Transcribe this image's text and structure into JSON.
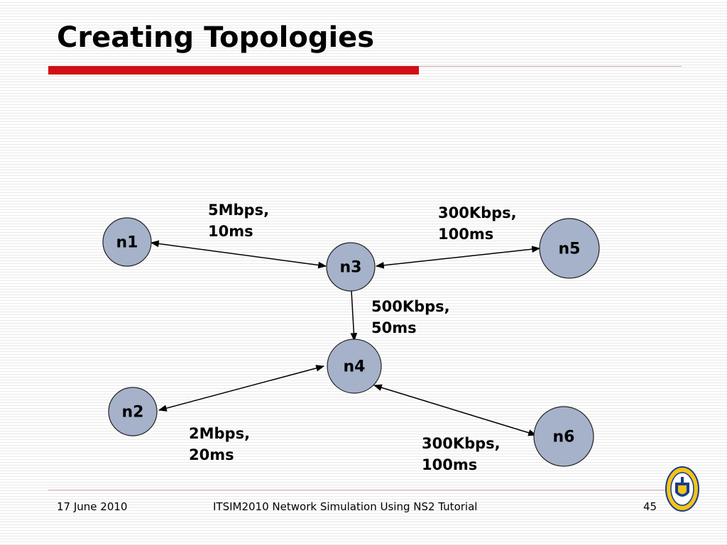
{
  "slide": {
    "title": "Creating Topologies",
    "accent_color": "#d10f16"
  },
  "diagram": {
    "nodes": [
      {
        "id": "n1",
        "label": "n1"
      },
      {
        "id": "n2",
        "label": "n2"
      },
      {
        "id": "n3",
        "label": "n3"
      },
      {
        "id": "n4",
        "label": "n4"
      },
      {
        "id": "n5",
        "label": "n5"
      },
      {
        "id": "n6",
        "label": "n6"
      }
    ],
    "node_color": "#a5b2c9",
    "links": [
      {
        "from": "n1",
        "to": "n3",
        "bandwidth": "5Mbps,",
        "delay": "10ms"
      },
      {
        "from": "n3",
        "to": "n5",
        "bandwidth": "300Kbps,",
        "delay": "100ms"
      },
      {
        "from": "n3",
        "to": "n4",
        "bandwidth": "500Kbps,",
        "delay": "50ms"
      },
      {
        "from": "n2",
        "to": "n4",
        "bandwidth": "2Mbps,",
        "delay": "20ms"
      },
      {
        "from": "n4",
        "to": "n6",
        "bandwidth": "300Kbps,",
        "delay": "100ms"
      }
    ]
  },
  "footer": {
    "date": "17 June 2010",
    "center": "ITSIM2010 Network Simulation Using NS2 Tutorial",
    "page_number": "45",
    "logo": "university-seal-icon"
  }
}
